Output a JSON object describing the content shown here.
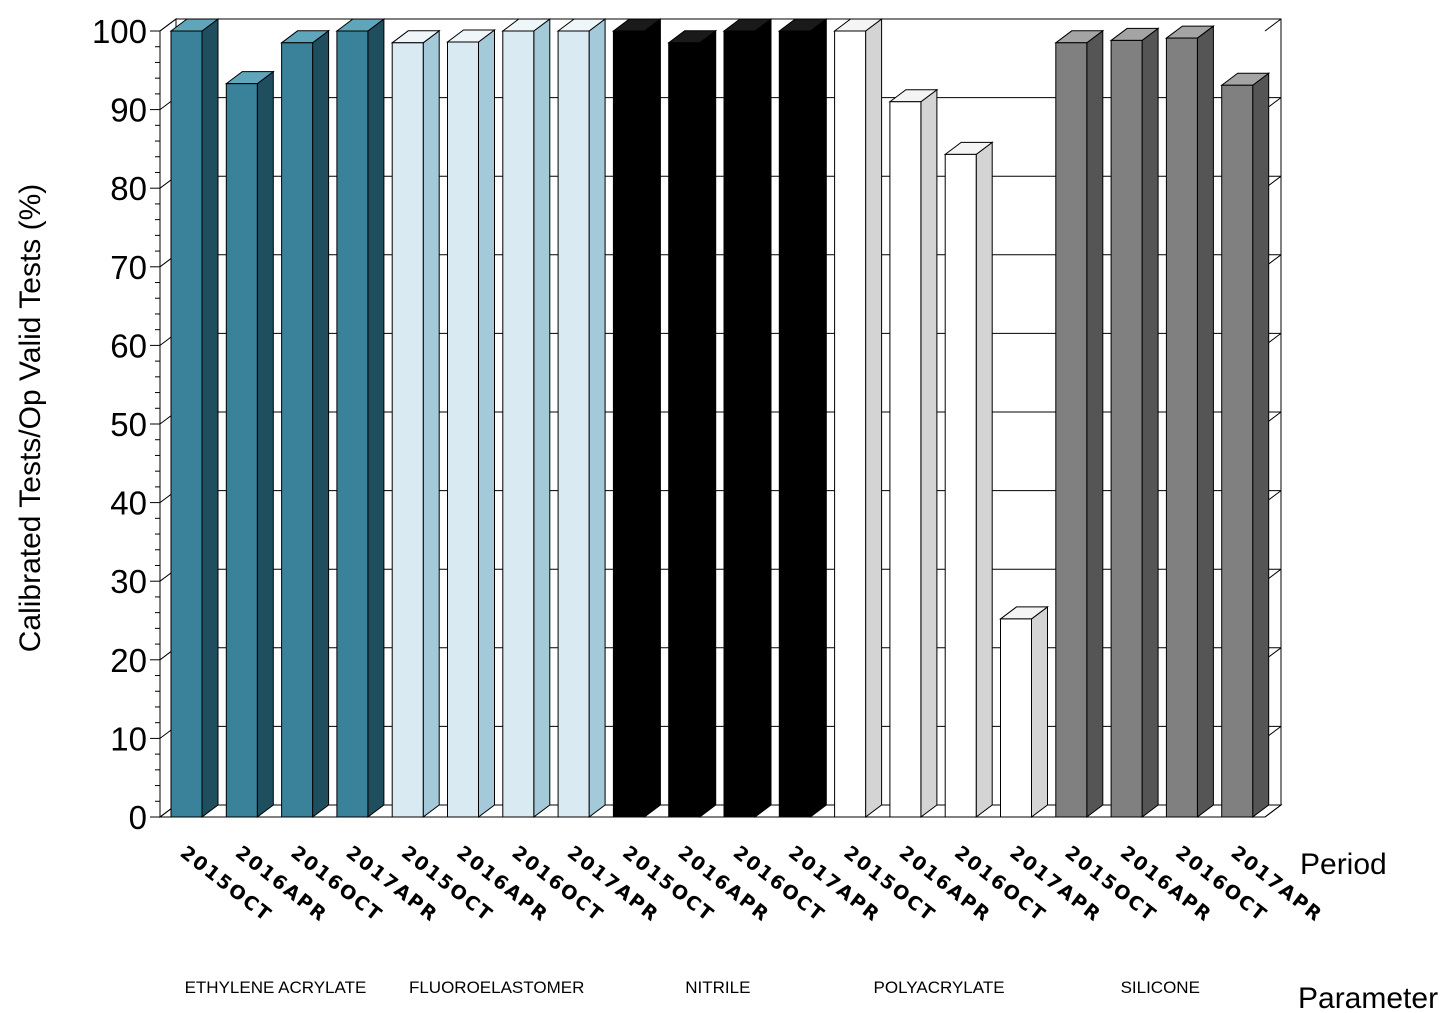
{
  "chart_data": {
    "type": "bar",
    "style": "3d",
    "ylabel": "Calibrated Tests/Op Valid Tests (%)",
    "period_axis_label": "Period",
    "parameter_axis_label": "Parameter",
    "ylim": [
      0,
      100
    ],
    "yticks": [
      0,
      10,
      20,
      30,
      40,
      50,
      60,
      70,
      80,
      90,
      100
    ],
    "grid": true,
    "groups": [
      {
        "name": "ETHYLENE ACRYLATE",
        "colors": {
          "front": "#3a8299",
          "side": "#1f4f5e",
          "top": "#5fa6bd"
        },
        "bars": [
          {
            "period": "2015OCT",
            "value": 100
          },
          {
            "period": "2016APR",
            "value": 93.3
          },
          {
            "period": "2016OCT",
            "value": 98.5
          },
          {
            "period": "2017APR",
            "value": 100
          }
        ]
      },
      {
        "name": "FLUOROELASTOMER",
        "colors": {
          "front": "#daeaf2",
          "side": "#a4c9d9",
          "top": "#eef6fa"
        },
        "bars": [
          {
            "period": "2015OCT",
            "value": 98.5
          },
          {
            "period": "2016APR",
            "value": 98.6
          },
          {
            "period": "2016OCT",
            "value": 100
          },
          {
            "period": "2017APR",
            "value": 100
          }
        ]
      },
      {
        "name": "NITRILE",
        "colors": {
          "front": "#000000",
          "side": "#000000",
          "top": "#1a1a1a"
        },
        "bars": [
          {
            "period": "2015OCT",
            "value": 100
          },
          {
            "period": "2016APR",
            "value": 98.5
          },
          {
            "period": "2016OCT",
            "value": 100
          },
          {
            "period": "2017APR",
            "value": 100
          }
        ]
      },
      {
        "name": "POLYACRYLATE",
        "colors": {
          "front": "#ffffff",
          "side": "#d4d4d4",
          "top": "#f4f4f4"
        },
        "bars": [
          {
            "period": "2015OCT",
            "value": 100
          },
          {
            "period": "2016APR",
            "value": 91
          },
          {
            "period": "2016OCT",
            "value": 84.3
          },
          {
            "period": "2017APR",
            "value": 25.2
          }
        ]
      },
      {
        "name": "SILICONE",
        "colors": {
          "front": "#808080",
          "side": "#555555",
          "top": "#a4a4a4"
        },
        "bars": [
          {
            "period": "2015OCT",
            "value": 98.5
          },
          {
            "period": "2016APR",
            "value": 98.8
          },
          {
            "period": "2016OCT",
            "value": 99.1
          },
          {
            "period": "2017APR",
            "value": 93.1
          }
        ]
      }
    ]
  }
}
